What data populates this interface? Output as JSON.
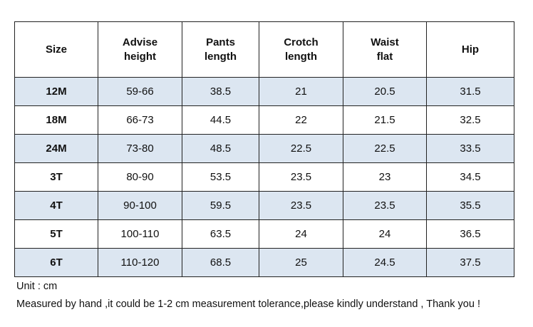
{
  "table": {
    "header": [
      [
        "Size"
      ],
      [
        "Advise",
        "height"
      ],
      [
        "Pants",
        "length"
      ],
      [
        "Crotch",
        "length"
      ],
      [
        "Waist",
        "flat"
      ],
      [
        "Hip"
      ]
    ],
    "rows": [
      [
        "12M",
        "59-66",
        "38.5",
        "21",
        "20.5",
        "31.5"
      ],
      [
        "18M",
        "66-73",
        "44.5",
        "22",
        "21.5",
        "32.5"
      ],
      [
        "24M",
        "73-80",
        "48.5",
        "22.5",
        "22.5",
        "33.5"
      ],
      [
        "3T",
        "80-90",
        "53.5",
        "23.5",
        "23",
        "34.5"
      ],
      [
        "4T",
        "90-100",
        "59.5",
        "23.5",
        "23.5",
        "35.5"
      ],
      [
        "5T",
        "100-110",
        "63.5",
        "24",
        "24",
        "36.5"
      ],
      [
        "6T",
        "110-120",
        "68.5",
        "25",
        "24.5",
        "37.5"
      ]
    ]
  },
  "footer": {
    "unit": "Unit : cm",
    "note": "Measured by hand ,it could be 1-2 cm measurement tolerance,please kindly understand , Thank you !"
  }
}
